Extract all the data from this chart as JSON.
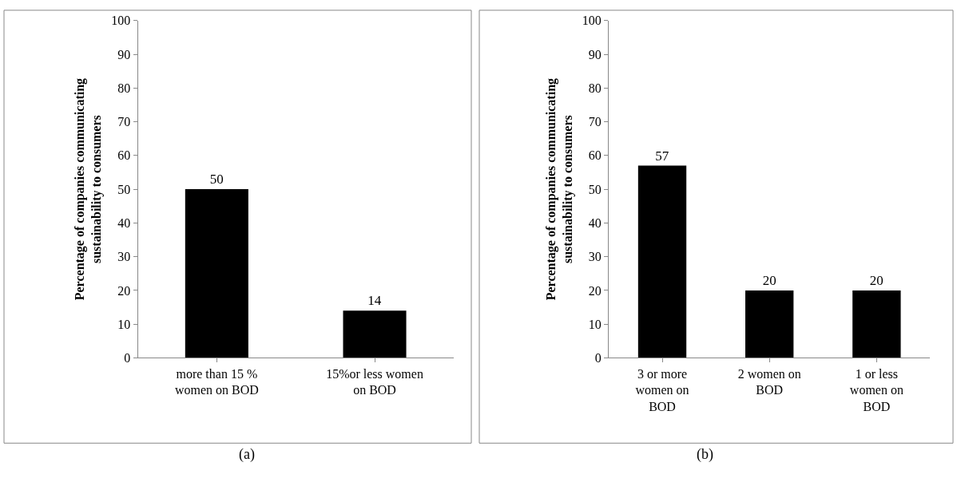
{
  "chart_data": [
    {
      "type": "bar",
      "categories": [
        "more than 15 % women on BOD",
        "15%or less women on BOD"
      ],
      "values": [
        50,
        14
      ],
      "color": "#000000",
      "ylabel": "Percentage of companies communicating sustainability to consumers",
      "ylim": [
        0,
        100
      ],
      "yticks": [
        0,
        10,
        20,
        30,
        40,
        50,
        60,
        70,
        80,
        90,
        100
      ],
      "data_labels": true,
      "annotations": [
        "(a)"
      ]
    },
    {
      "type": "bar",
      "categories": [
        "3 or more women on BOD",
        "2 women on BOD",
        "1 or less women on BOD"
      ],
      "values": [
        57,
        20,
        20
      ],
      "color": "#000000",
      "ylabel": "Percentage of companies communicating sustainability to consumers",
      "ylim": [
        0,
        100
      ],
      "yticks": [
        0,
        10,
        20,
        30,
        40,
        50,
        60,
        70,
        80,
        90,
        100
      ],
      "data_labels": true,
      "annotations": [
        "(b)"
      ]
    }
  ]
}
